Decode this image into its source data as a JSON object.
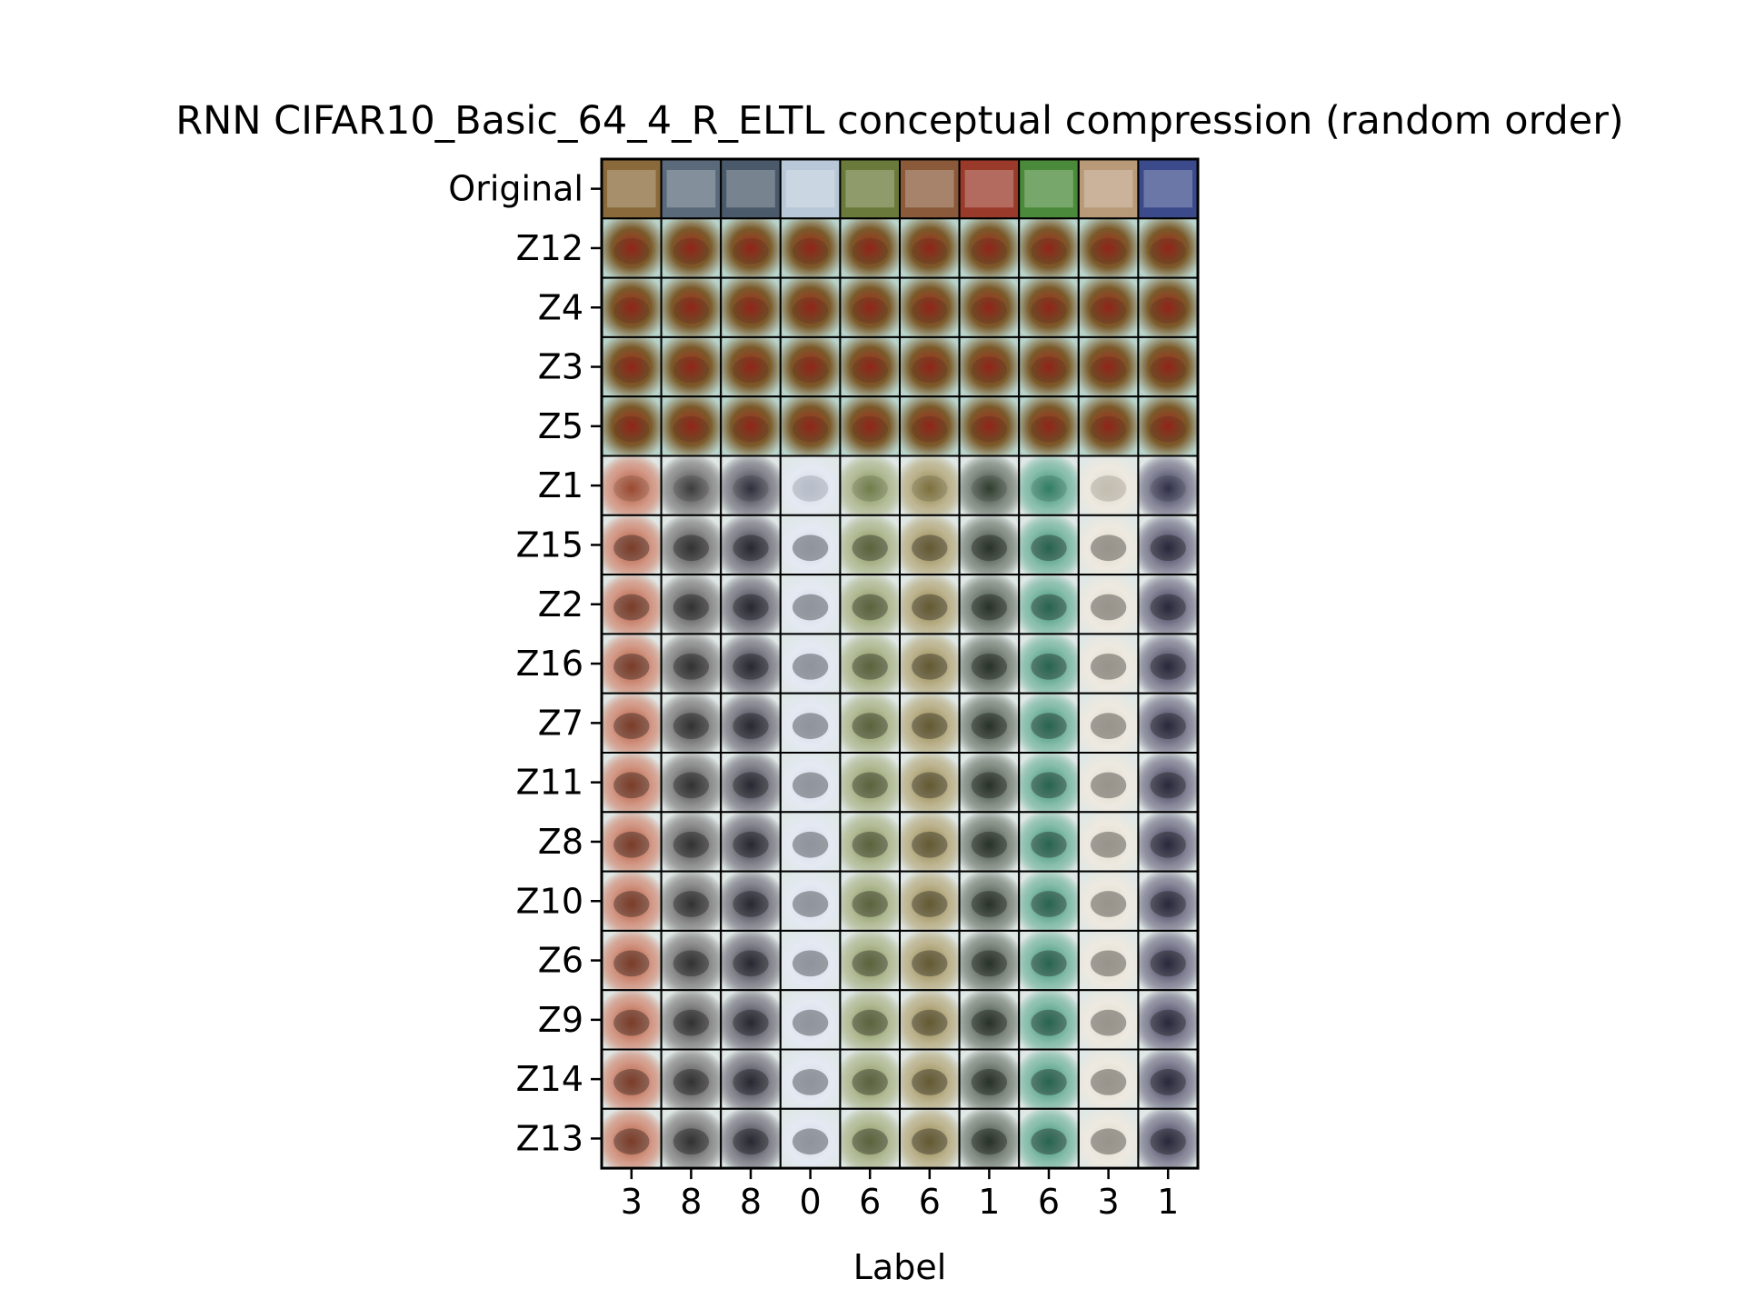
{
  "chart_data": {
    "type": "heatmap",
    "title": "RNN CIFAR10_Basic_64_4_R_ELTL conceptual compression (random order)",
    "xlabel": "Label",
    "ylabel": "",
    "x_tick_labels": [
      "3",
      "8",
      "8",
      "0",
      "6",
      "6",
      "1",
      "6",
      "3",
      "1"
    ],
    "row_labels": [
      "Original",
      "Z12",
      "Z4",
      "Z3",
      "Z5",
      "Z1",
      "Z15",
      "Z2",
      "Z16",
      "Z7",
      "Z11",
      "Z8",
      "Z10",
      "Z6",
      "Z9",
      "Z14",
      "Z13"
    ],
    "cell_content": "image thumbnails (CIFAR10 originals in first row, blurred reconstructions below)",
    "column_base_colors": [
      "#8a6a3a",
      "#5a6a7a",
      "#4a5a6a",
      "#b8c8d8",
      "#6a7a3a",
      "#8a5a3a",
      "#9a3a2a",
      "#4a8a3a",
      "#b89a78",
      "#3a4a8a"
    ],
    "reconstruction_tint": [
      "#b04a2a",
      "#3a3a3a",
      "#2a2a3a",
      "#d0d8e8",
      "#7a8a4a",
      "#8a7a3a",
      "#2a3a2a",
      "#2a8a6a",
      "#e0d8c8",
      "#2a2a4a"
    ]
  }
}
